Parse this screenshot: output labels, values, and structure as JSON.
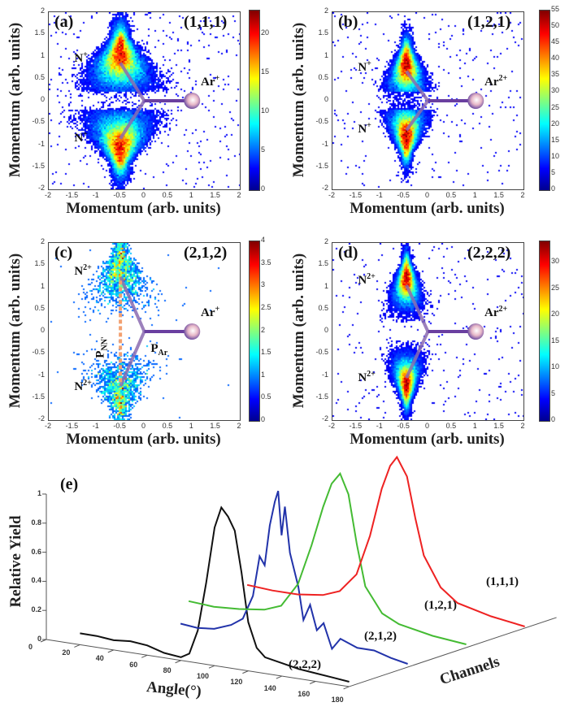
{
  "chart_data": [
    {
      "type": "heatmap",
      "panel": "(a)",
      "channel": "(1,1,1)",
      "xlabel": "Momentum (arb. units)",
      "ylabel": "Momentum (arb. units)",
      "xlim": [
        -2,
        2
      ],
      "ylim": [
        -2,
        2
      ],
      "xticks": [
        -2,
        -1.5,
        -1,
        -0.5,
        0,
        0.5,
        1,
        1.5,
        2
      ],
      "yticks": [
        -2,
        -1.5,
        -1,
        -0.5,
        0,
        0.5,
        1,
        1.5,
        2
      ],
      "colorbar": {
        "range": [
          0,
          23
        ],
        "ticks": [
          0,
          5,
          10,
          15,
          20
        ]
      },
      "annotations": {
        "upper_ion": "N",
        "upper_charge": "+",
        "lower_ion": "N",
        "lower_charge": "+",
        "atom": "Ar",
        "atom_charge": "+"
      },
      "lobes": {
        "center_x": -0.5,
        "upper_y": 0.9,
        "lower_y": -0.9
      }
    },
    {
      "type": "heatmap",
      "panel": "(b)",
      "channel": "(1,2,1)",
      "xlabel": "Momentum (arb. units)",
      "ylabel": "Momentum (arb. units)",
      "xlim": [
        -2,
        2
      ],
      "ylim": [
        -2,
        2
      ],
      "xticks": [
        -2,
        -1.5,
        -1,
        -0.5,
        0,
        0.5,
        1,
        1.5,
        2
      ],
      "yticks": [
        -2,
        -1.5,
        -1,
        -0.5,
        0,
        0.5,
        1,
        1.5,
        2
      ],
      "colorbar": {
        "range": [
          0,
          55
        ],
        "ticks": [
          0,
          5,
          10,
          15,
          20,
          25,
          30,
          35,
          40,
          45,
          50,
          55
        ]
      },
      "annotations": {
        "upper_ion": "N",
        "upper_charge": "+",
        "lower_ion": "N",
        "lower_charge": "+",
        "atom": "Ar",
        "atom_charge": "2+"
      },
      "lobes": {
        "center_x": -0.45,
        "upper_y": 0.7,
        "lower_y": -0.7
      }
    },
    {
      "type": "heatmap",
      "panel": "(c)",
      "channel": "(2,1,2)",
      "xlabel": "Momentum (arb. units)",
      "ylabel": "Momentum (arb. units)",
      "xlim": [
        -2,
        2
      ],
      "ylim": [
        -2,
        2
      ],
      "xticks": [
        -2,
        -1.5,
        -1,
        -0.5,
        0,
        0.5,
        1,
        1.5,
        2
      ],
      "yticks": [
        -2,
        -1.5,
        -1,
        -0.5,
        0,
        0.5,
        1,
        1.5,
        2
      ],
      "colorbar": {
        "range": [
          0,
          4
        ],
        "ticks": [
          0,
          0.5,
          1,
          1.5,
          2,
          2.5,
          3,
          3.5,
          4
        ]
      },
      "annotations": {
        "upper_ion": "N",
        "upper_charge": "2+",
        "lower_ion": "N",
        "lower_charge": "2+",
        "atom": "Ar",
        "atom_charge": "+",
        "p_nn": "P",
        "p_nn_sub": "NN'",
        "p_ar": "P",
        "p_ar_sub": "Ar"
      },
      "lobes": {
        "center_x": -0.5,
        "upper_y": 1.3,
        "lower_y": -1.3
      }
    },
    {
      "type": "heatmap",
      "panel": "(d)",
      "channel": "(2,2,2)",
      "xlabel": "Momentum (arb. units)",
      "ylabel": "Momentum (arb. units)",
      "xlim": [
        -2,
        2
      ],
      "ylim": [
        -2,
        2
      ],
      "xticks": [
        -2,
        -1.5,
        -1,
        -0.5,
        0,
        0.5,
        1,
        1.5,
        2
      ],
      "yticks": [
        -2,
        -1.5,
        -1,
        -0.5,
        0,
        0.5,
        1,
        1.5,
        2
      ],
      "colorbar": {
        "range": [
          0,
          34
        ],
        "ticks": [
          0,
          5,
          10,
          15,
          20,
          25,
          30
        ]
      },
      "annotations": {
        "upper_ion": "N",
        "upper_charge": "2+",
        "lower_ion": "N",
        "lower_charge": "2+",
        "atom": "Ar",
        "atom_charge": "2+"
      },
      "lobes": {
        "center_x": -0.45,
        "upper_y": 1.1,
        "lower_y": -1.1
      }
    },
    {
      "type": "line",
      "panel": "(e)",
      "xlabel": "Angle(°)",
      "ylabel": "Relative Yield",
      "zlabel": "Channels",
      "xticks": [
        0,
        20,
        40,
        60,
        80,
        100,
        120,
        140,
        160,
        180
      ],
      "yticks": [
        0,
        0.2,
        0.4,
        0.6,
        0.8,
        1
      ],
      "xlim": [
        0,
        180
      ],
      "ylim": [
        0,
        1
      ],
      "series": [
        {
          "name": "(2,2,2)",
          "color": "#111111",
          "x": [
            20,
            30,
            40,
            50,
            60,
            70,
            80,
            85,
            90,
            95,
            100,
            104,
            108,
            112,
            116,
            120,
            125,
            130,
            140,
            150,
            160,
            170,
            180
          ],
          "y": [
            0.07,
            0.07,
            0.06,
            0.07,
            0.06,
            0.03,
            0.02,
            0.05,
            0.2,
            0.5,
            0.85,
            0.98,
            0.93,
            0.85,
            0.6,
            0.3,
            0.15,
            0.1,
            0.08,
            0.06,
            0.05,
            0.04,
            0.03
          ]
        },
        {
          "name": "(2,1,2)",
          "color": "#2233aa",
          "x": [
            45,
            55,
            65,
            75,
            82,
            88,
            92,
            95,
            98,
            101,
            103,
            105,
            107,
            110,
            115,
            118,
            122,
            126,
            130,
            135,
            140,
            150,
            160,
            170,
            180
          ],
          "y": [
            0.06,
            0.05,
            0.06,
            0.1,
            0.15,
            0.3,
            0.55,
            0.5,
            0.75,
            0.9,
            0.97,
            0.7,
            0.88,
            0.6,
            0.4,
            0.2,
            0.3,
            0.15,
            0.2,
            0.05,
            0.12,
            0.08,
            0.08,
            0.05,
            0.03
          ]
        },
        {
          "name": "(1,2,1)",
          "color": "#44bb33",
          "x": [
            15,
            30,
            45,
            60,
            70,
            80,
            88,
            95,
            100,
            105,
            110,
            115,
            120,
            130,
            140,
            160,
            180
          ],
          "y": [
            0.04,
            0.03,
            0.04,
            0.06,
            0.1,
            0.25,
            0.5,
            0.75,
            0.9,
            0.97,
            0.85,
            0.55,
            0.3,
            0.15,
            0.1,
            0.06,
            0.04
          ]
        },
        {
          "name": "(1,1,1)",
          "color": "#ee2222",
          "x": [
            15,
            30,
            45,
            60,
            70,
            80,
            88,
            95,
            100,
            104,
            110,
            115,
            120,
            130,
            140,
            160,
            180
          ],
          "y": [
            0.03,
            0.02,
            0.02,
            0.04,
            0.08,
            0.2,
            0.45,
            0.75,
            0.9,
            0.96,
            0.85,
            0.6,
            0.38,
            0.2,
            0.12,
            0.07,
            0.04
          ]
        }
      ]
    }
  ],
  "panel_e_tag": "(e)"
}
